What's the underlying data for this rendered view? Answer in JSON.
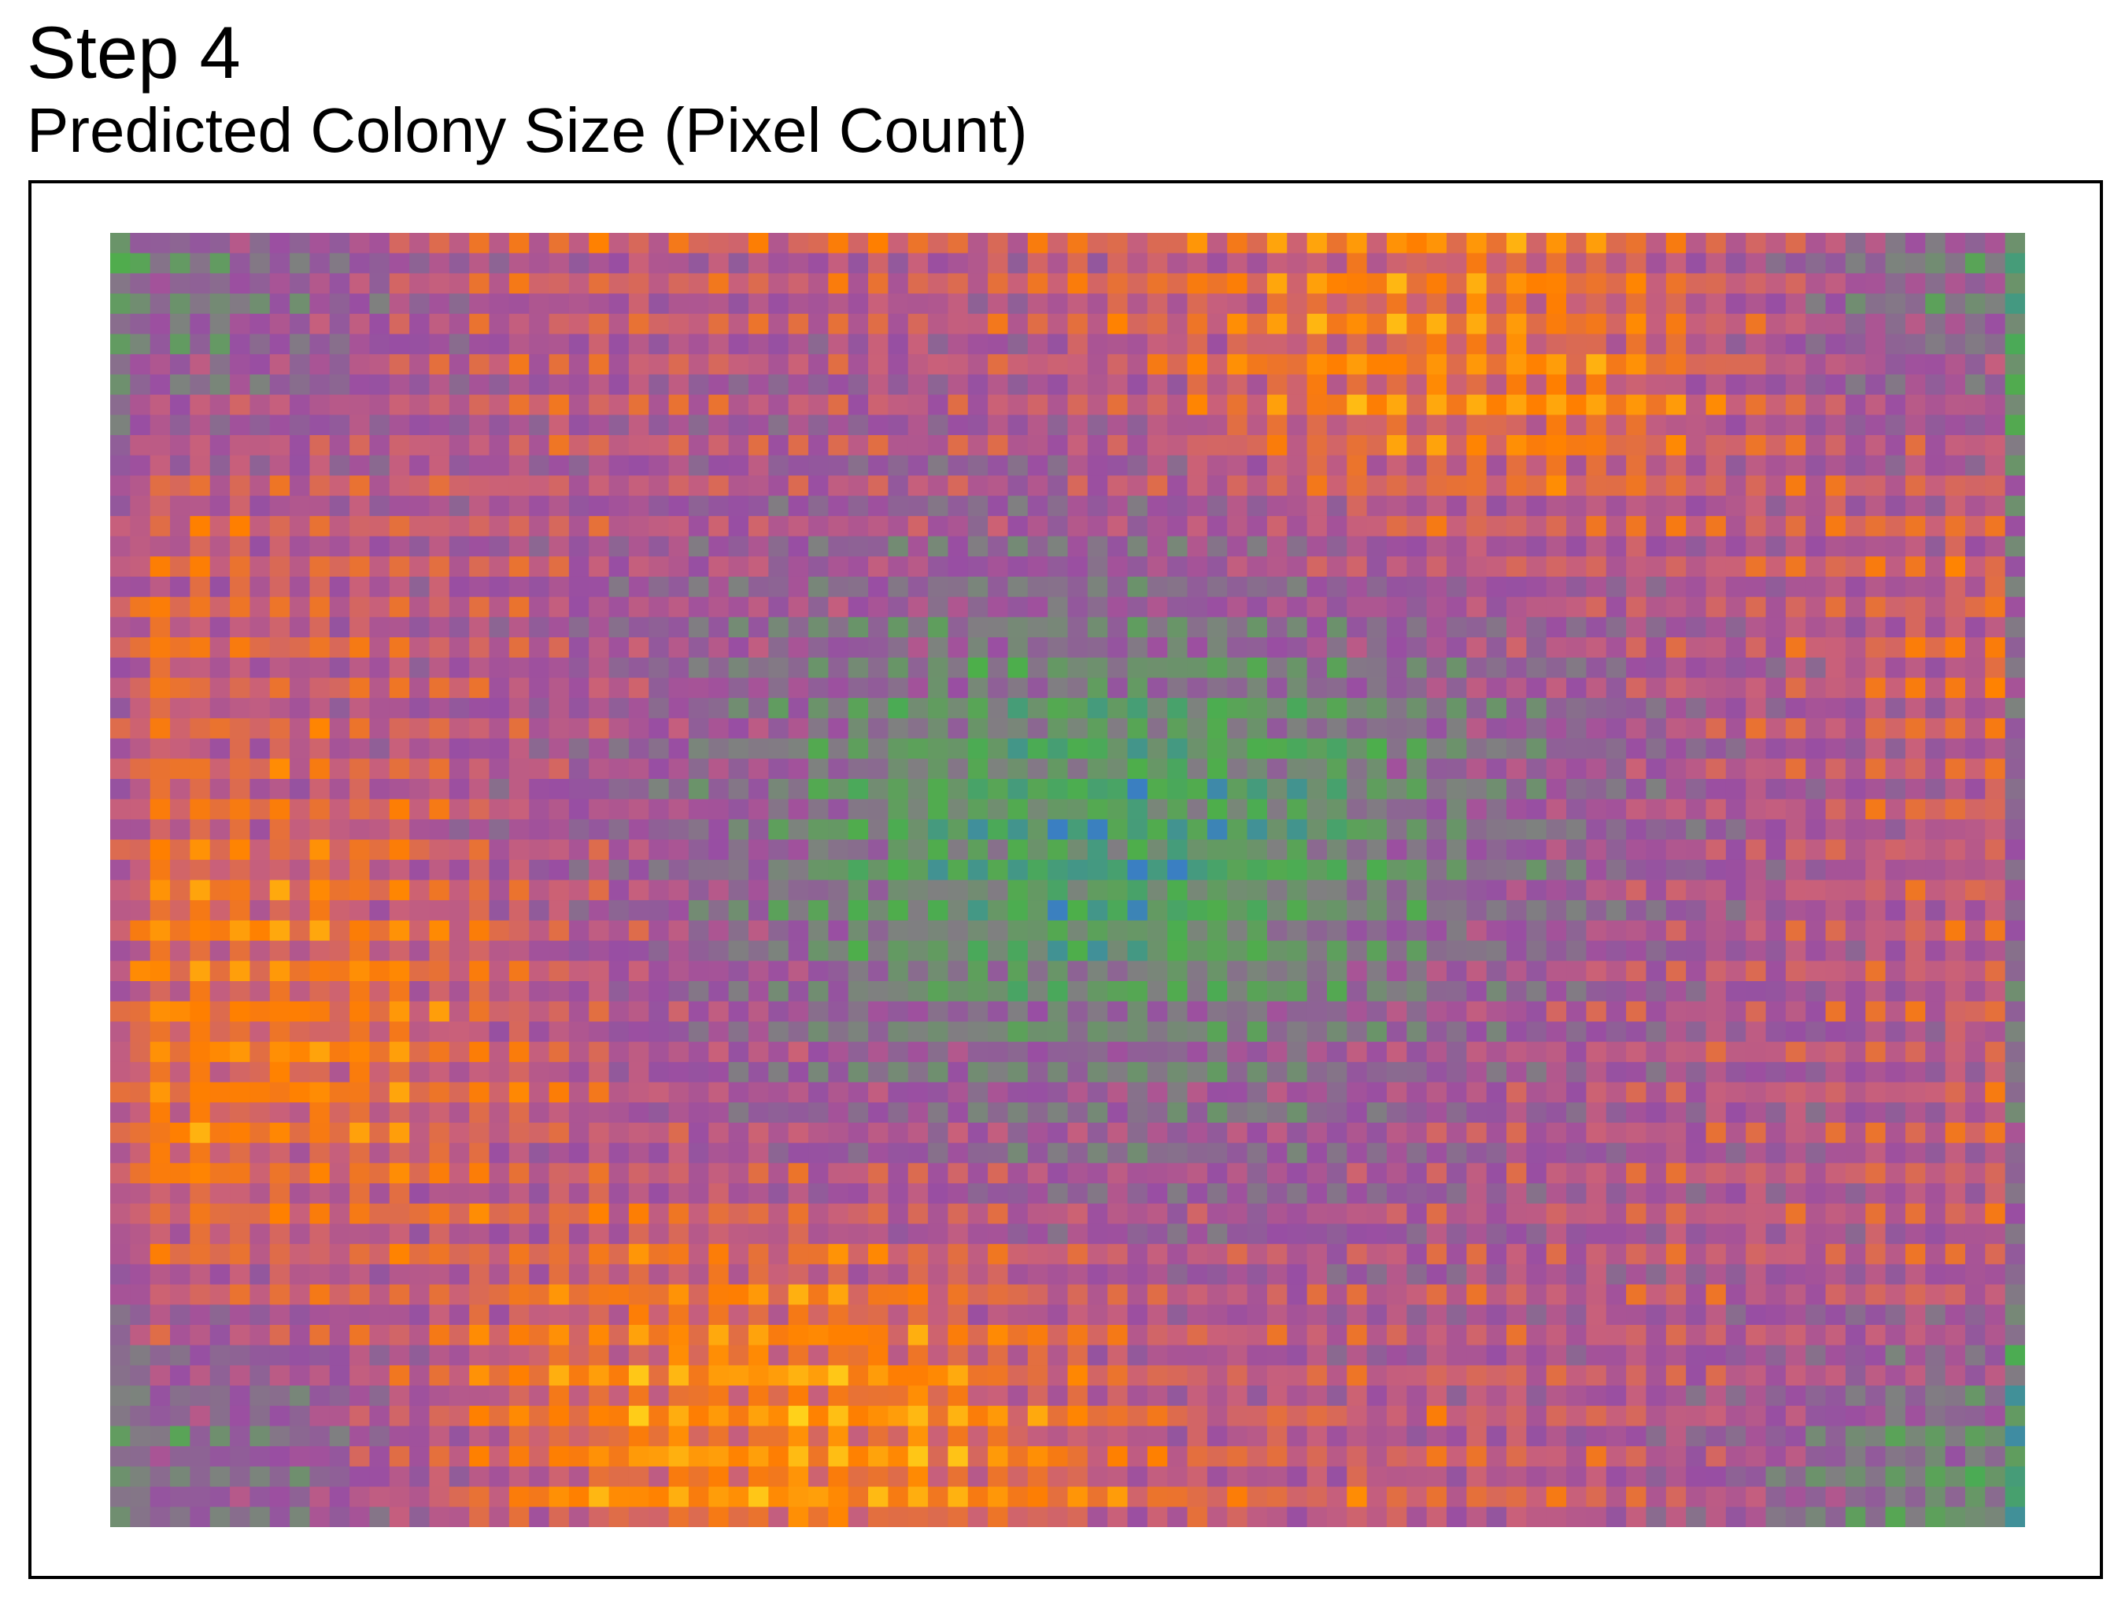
{
  "title": "Step 4",
  "subtitle": "Predicted Colony Size (Pixel Count)",
  "chart_data": {
    "type": "heatmap",
    "title": "Step 4",
    "subtitle": "Predicted Colony Size (Pixel Count)",
    "xlabel": "",
    "ylabel": "",
    "grid": false,
    "legend": "none",
    "rows": 64,
    "cols": 96,
    "value_range": [
      0,
      1
    ],
    "colormap": [
      "#3a7fc2",
      "#4daf4a",
      "#7f8080",
      "#984ea3",
      "#c9607a",
      "#ff7f00",
      "#ffd11a"
    ],
    "regions": [
      {
        "name": "center",
        "row": 0.47,
        "col": 0.53,
        "level": 0.08
      },
      {
        "name": "top-left",
        "row": 0.04,
        "col": 0.02,
        "level": 0.22
      },
      {
        "name": "top-right",
        "row": 0.03,
        "col": 0.98,
        "level": 0.22
      },
      {
        "name": "bottom-left",
        "row": 0.95,
        "col": 0.04,
        "level": 0.22
      },
      {
        "name": "bottom-right",
        "row": 0.97,
        "col": 0.98,
        "level": 0.15
      },
      {
        "name": "upper-band",
        "row": 0.1,
        "col": 0.7,
        "level": 0.86
      },
      {
        "name": "lower-band",
        "row": 0.91,
        "col": 0.35,
        "level": 0.9
      },
      {
        "name": "left-band",
        "row": 0.6,
        "col": 0.08,
        "level": 0.8
      },
      {
        "name": "right-mid",
        "row": 0.65,
        "col": 0.85,
        "level": 0.55
      }
    ]
  }
}
